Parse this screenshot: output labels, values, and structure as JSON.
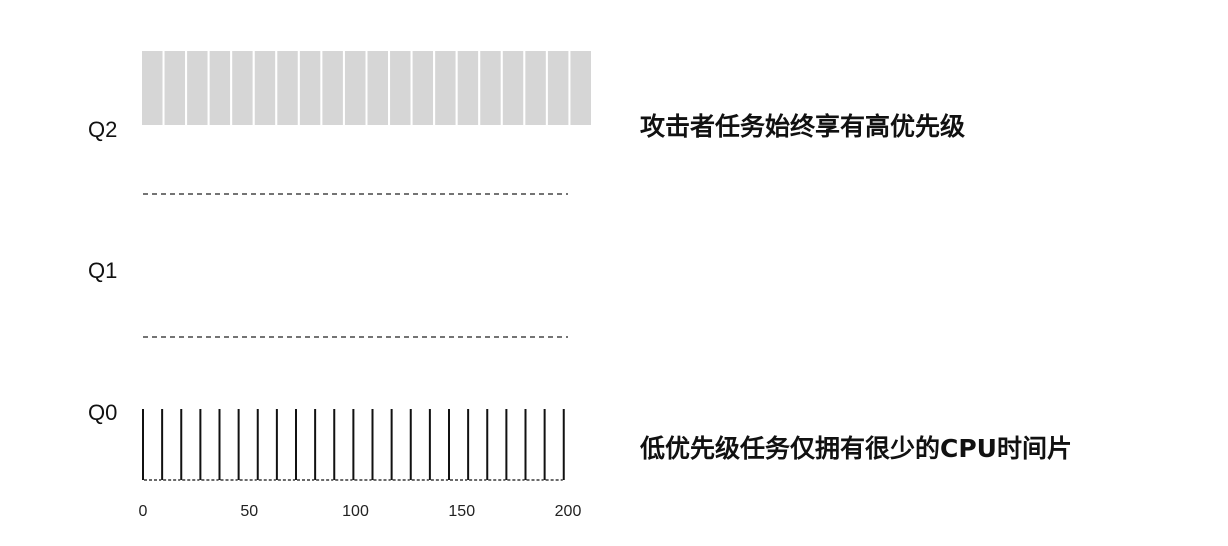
{
  "queues": [
    {
      "id": "Q2",
      "label": "Q2"
    },
    {
      "id": "Q1",
      "label": "Q1"
    },
    {
      "id": "Q0",
      "label": "Q0"
    }
  ],
  "annotations": {
    "attacker": "攻击者任务始终享有高优先级",
    "low_priority": "低优先级任务仅拥有很少的CPU时间片"
  },
  "axis": {
    "min": 0,
    "max": 200,
    "ticks": [
      0,
      50,
      100,
      150,
      200
    ]
  },
  "q2_slices": {
    "start": 0,
    "end": 200,
    "count": 20,
    "color": "#d6d6d6"
  },
  "q0_spikes": {
    "times": [
      0,
      9,
      18,
      27,
      36,
      45,
      54,
      63,
      72,
      81,
      90,
      99,
      108,
      117,
      126,
      135,
      144,
      153,
      162,
      171,
      180,
      189,
      198
    ]
  }
}
